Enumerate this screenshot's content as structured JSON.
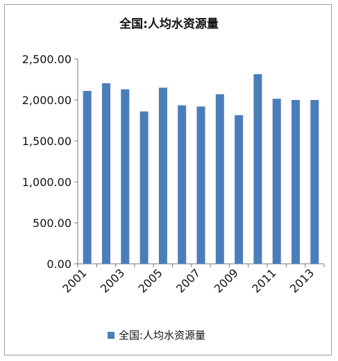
{
  "chart_data": {
    "type": "bar",
    "title": "全国:人均水资源量",
    "categories": [
      "2001",
      "2002",
      "2003",
      "2004",
      "2005",
      "2006",
      "2007",
      "2008",
      "2009",
      "2010",
      "2011",
      "2012",
      "2013"
    ],
    "x_tick_labels": [
      "2001",
      "2003",
      "2005",
      "2007",
      "2009",
      "2011",
      "2013"
    ],
    "series": [
      {
        "name": "全国:人均水资源量",
        "values": [
          2110,
          2205,
          2130,
          1860,
          2150,
          1935,
          1920,
          2070,
          1815,
          2315,
          2015,
          2000,
          2000
        ]
      }
    ],
    "y_ticks": [
      "0.00",
      "500.00",
      "1,000.00",
      "1,500.00",
      "2,000.00",
      "2,500.00"
    ],
    "ylim": [
      0,
      2500
    ],
    "grid": false,
    "legend_position": "bottom",
    "bar_color": "#4a7ebb"
  }
}
